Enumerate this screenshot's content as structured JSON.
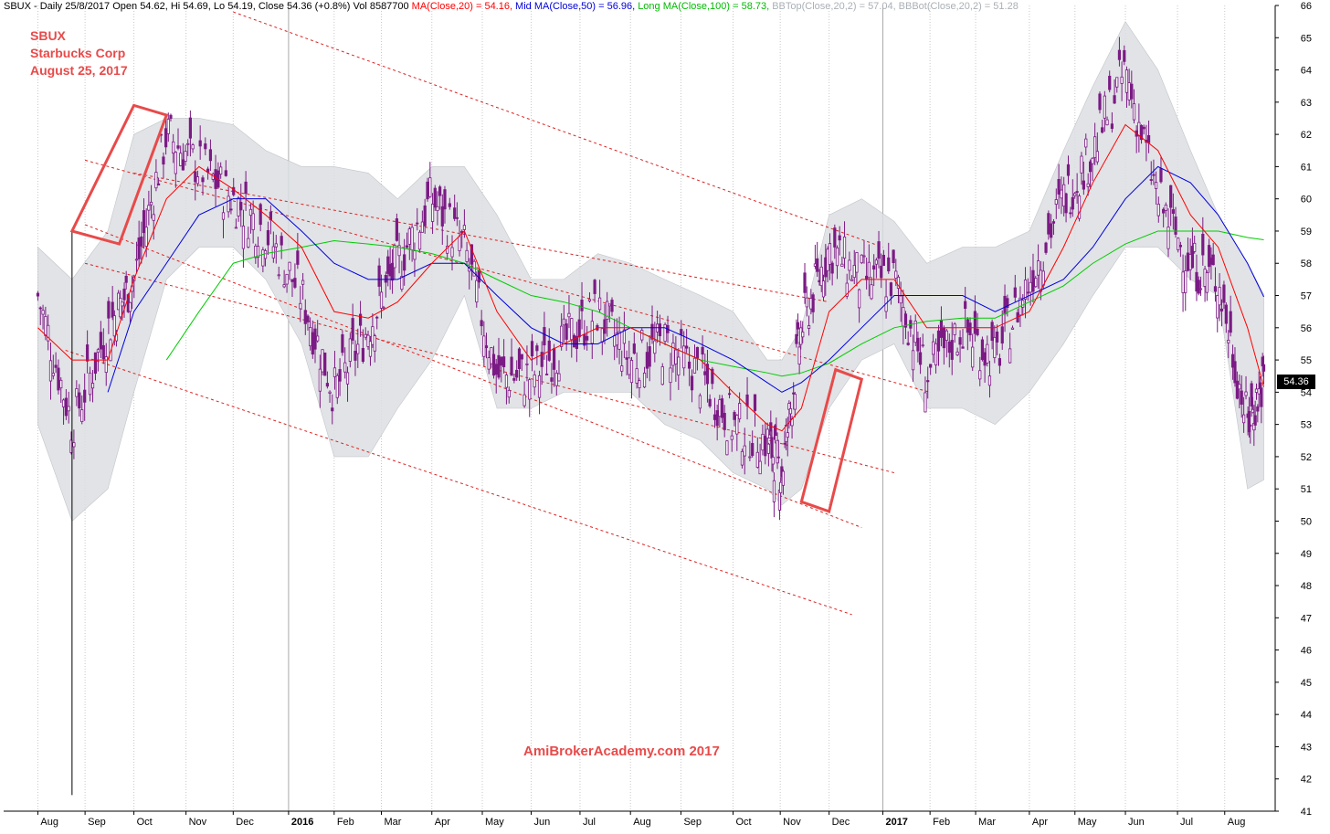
{
  "header": {
    "symbol_line": "SBUX - Daily 25/8/2017 Open 54.62, Hi 54.69, Lo 54.19, Close 54.36 (+0.8%) Vol 8587700",
    "ma20": "MA(Close,20) = 54.16,",
    "ma50": "Mid MA(Close,50) = 56.96,",
    "ma100": "Long MA(Close,100) = 58.73,",
    "bbtop": "BBTop(Close,20,2) = 57.04,",
    "bbbot": "BBBot(Close,20,2) = 51.28"
  },
  "annotation": {
    "ticker": "SBUX",
    "company": "Starbucks Corp",
    "date": "August 25, 2017"
  },
  "watermark": "AmiBrokerAcademy.com  2017",
  "last_price_label": "54.36",
  "colors": {
    "candle": "#7b1a84",
    "ma20": "#ff0000",
    "ma50": "#0000dd",
    "ma100": "#00cc00",
    "bollinger_band": "#dcdfe2",
    "channel": "#dd2222",
    "highlight_box": "#e84a4a",
    "grid": "#c8c8c8"
  },
  "chart_data": {
    "type": "line",
    "title": "SBUX - Daily 25/8/2017",
    "ylim": [
      41,
      66
    ],
    "y_ticks": [
      41,
      42,
      43,
      44,
      45,
      46,
      47,
      48,
      49,
      50,
      51,
      52,
      53,
      54,
      55,
      56,
      57,
      58,
      59,
      60,
      61,
      62,
      63,
      64,
      65,
      66
    ],
    "grid": "vertical",
    "x_ticks": [
      "Aug",
      "Sep",
      "Oct",
      "Nov",
      "Dec",
      "2016",
      "Feb",
      "Mar",
      "Apr",
      "May",
      "Jun",
      "Jul",
      "Aug",
      "Sep",
      "Oct",
      "Nov",
      "Dec",
      "2017",
      "Feb",
      "Mar",
      "Apr",
      "May",
      "Jun",
      "Jul",
      "Aug"
    ],
    "x": [
      "2015-08-03",
      "2015-08-24",
      "2015-09-15",
      "2015-10-01",
      "2015-10-21",
      "2015-11-10",
      "2015-12-01",
      "2015-12-21",
      "2016-01-12",
      "2016-02-01",
      "2016-02-22",
      "2016-03-11",
      "2016-04-01",
      "2016-04-21",
      "2016-05-11",
      "2016-06-01",
      "2016-06-21",
      "2016-07-12",
      "2016-08-01",
      "2016-08-22",
      "2016-09-13",
      "2016-10-03",
      "2016-10-24",
      "2016-11-02",
      "2016-11-14",
      "2016-12-01",
      "2016-12-21",
      "2017-01-10",
      "2017-01-30",
      "2017-02-21",
      "2017-03-13",
      "2017-04-03",
      "2017-04-24",
      "2017-05-12",
      "2017-06-01",
      "2017-06-21",
      "2017-07-11",
      "2017-07-28",
      "2017-08-15",
      "2017-08-25"
    ],
    "series": [
      {
        "name": "Close",
        "values": [
          57.0,
          53.0,
          56.0,
          57.5,
          62.0,
          61.0,
          60.0,
          59.0,
          57.0,
          54.0,
          56.0,
          58.0,
          60.0,
          58.5,
          54.5,
          54.5,
          55.5,
          56.5,
          55.0,
          55.5,
          54.5,
          53.0,
          52.5,
          51.5,
          56.0,
          58.5,
          57.5,
          57.5,
          54.5,
          56.0,
          55.0,
          57.5,
          60.0,
          61.5,
          64.0,
          60.0,
          58.0,
          57.5,
          53.0,
          54.36
        ]
      },
      {
        "name": "MA(Close,20)",
        "values": [
          56.0,
          55.0,
          55.0,
          57.5,
          60.0,
          61.0,
          60.3,
          59.5,
          58.5,
          56.5,
          56.3,
          56.8,
          58.0,
          59.0,
          56.5,
          55.0,
          55.5,
          56.0,
          56.0,
          55.5,
          55.0,
          54.0,
          53.0,
          52.8,
          53.5,
          56.5,
          57.5,
          57.5,
          56.0,
          56.0,
          56.0,
          56.5,
          58.5,
          60.5,
          62.3,
          61.5,
          59.5,
          58.5,
          56.0,
          54.16
        ]
      },
      {
        "name": "Mid MA(Close,50)",
        "values": [
          null,
          null,
          54.0,
          56.5,
          58.0,
          59.5,
          60.0,
          60.0,
          59.0,
          58.0,
          57.5,
          57.5,
          58.0,
          58.0,
          57.0,
          56.0,
          55.5,
          55.5,
          56.0,
          56.0,
          55.5,
          55.0,
          54.3,
          54.0,
          54.3,
          55.0,
          56.0,
          57.0,
          57.0,
          57.0,
          56.5,
          57.0,
          57.5,
          58.5,
          60.0,
          61.0,
          60.5,
          59.5,
          58.0,
          56.96
        ]
      },
      {
        "name": "Long MA(Close,100)",
        "values": [
          null,
          null,
          null,
          null,
          55.0,
          56.5,
          58.0,
          58.3,
          58.5,
          58.7,
          58.6,
          58.5,
          58.3,
          58.0,
          57.5,
          57.0,
          56.8,
          56.5,
          56.0,
          55.5,
          55.0,
          54.8,
          54.6,
          54.5,
          54.6,
          54.9,
          55.5,
          56.0,
          56.2,
          56.3,
          56.3,
          56.8,
          57.3,
          58.0,
          58.6,
          59.0,
          59.0,
          59.0,
          58.8,
          58.73
        ]
      },
      {
        "name": "BBTop(Close,20,2)",
        "values": [
          58.5,
          57.5,
          59.0,
          62.0,
          62.5,
          62.5,
          62.3,
          61.5,
          61.0,
          61.0,
          60.8,
          60.0,
          61.0,
          61.0,
          59.5,
          57.5,
          57.5,
          58.3,
          58.0,
          57.5,
          57.0,
          56.5,
          55.0,
          55.0,
          56.0,
          59.5,
          60.0,
          59.3,
          58.0,
          58.5,
          58.5,
          59.0,
          61.5,
          63.5,
          65.5,
          64.0,
          61.5,
          59.5,
          58.0,
          57.04
        ]
      },
      {
        "name": "BBBot(Close,20,2)",
        "values": [
          53.0,
          50.0,
          51.0,
          54.0,
          57.5,
          58.5,
          58.5,
          57.5,
          55.5,
          52.0,
          52.0,
          53.5,
          55.0,
          57.0,
          53.5,
          53.5,
          54.0,
          54.0,
          54.0,
          53.0,
          52.5,
          51.5,
          51.0,
          50.5,
          51.0,
          53.5,
          55.0,
          55.5,
          53.5,
          53.5,
          53.0,
          54.0,
          55.5,
          57.0,
          58.5,
          58.5,
          57.5,
          57.0,
          51.0,
          51.28
        ]
      }
    ],
    "annotations": [
      "AmiBrokerAcademy.com  2017"
    ]
  }
}
